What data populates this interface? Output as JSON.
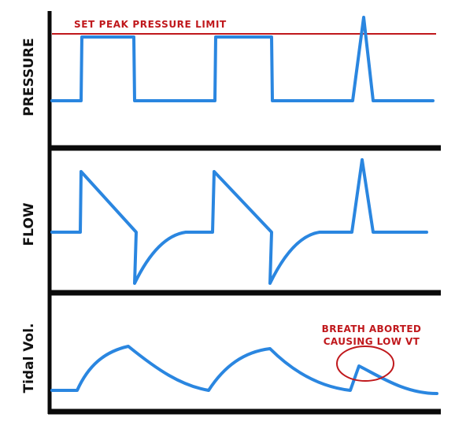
{
  "colors": {
    "trace": "#2a86e0",
    "axis": "#0a0a0a",
    "annotation": "#c0181c"
  },
  "panels": {
    "pressure": {
      "ylabel": "PRESSURE"
    },
    "flow": {
      "ylabel": "FLOW"
    },
    "volume": {
      "ylabel": "Tidal Vol."
    }
  },
  "annotations": {
    "peak_limit": "SET PEAK PRESSURE LIMIT",
    "aborted_line1": "BREATH ABORTED",
    "aborted_line2": "CAUSING LOW VT"
  }
}
